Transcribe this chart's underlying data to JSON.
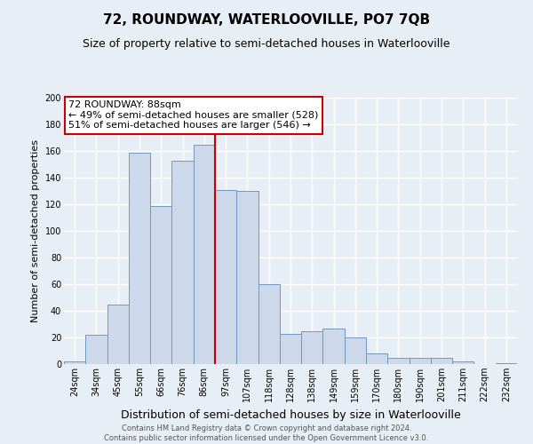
{
  "title": "72, ROUNDWAY, WATERLOOVILLE, PO7 7QB",
  "subtitle": "Size of property relative to semi-detached houses in Waterlooville",
  "xlabel": "Distribution of semi-detached houses by size in Waterlooville",
  "ylabel": "Number of semi-detached properties",
  "bin_labels": [
    "24sqm",
    "34sqm",
    "45sqm",
    "55sqm",
    "66sqm",
    "76sqm",
    "86sqm",
    "97sqm",
    "107sqm",
    "118sqm",
    "128sqm",
    "138sqm",
    "149sqm",
    "159sqm",
    "170sqm",
    "180sqm",
    "190sqm",
    "201sqm",
    "211sqm",
    "222sqm",
    "232sqm"
  ],
  "bar_values": [
    2,
    22,
    45,
    159,
    119,
    153,
    165,
    131,
    130,
    60,
    23,
    25,
    27,
    20,
    8,
    5,
    5,
    5,
    2,
    0,
    1
  ],
  "bar_color": "#cdd8ea",
  "bar_edge_color": "#7097c0",
  "vline_x_index": 6,
  "vline_color": "#cc0000",
  "ylim": [
    0,
    200
  ],
  "yticks": [
    0,
    20,
    40,
    60,
    80,
    100,
    120,
    140,
    160,
    180,
    200
  ],
  "annotation_title": "72 ROUNDWAY: 88sqm",
  "annotation_line1": "← 49% of semi-detached houses are smaller (528)",
  "annotation_line2": "51% of semi-detached houses are larger (546) →",
  "annotation_box_facecolor": "white",
  "annotation_box_edgecolor": "#cc0000",
  "footer_line1": "Contains HM Land Registry data © Crown copyright and database right 2024.",
  "footer_line2": "Contains public sector information licensed under the Open Government Licence v3.0.",
  "background_color": "#e8eef6",
  "grid_color": "#ffffff",
  "title_fontsize": 11,
  "subtitle_fontsize": 9,
  "ylabel_fontsize": 8,
  "xlabel_fontsize": 9,
  "tick_fontsize": 7,
  "annot_fontsize": 8,
  "footer_fontsize": 6
}
